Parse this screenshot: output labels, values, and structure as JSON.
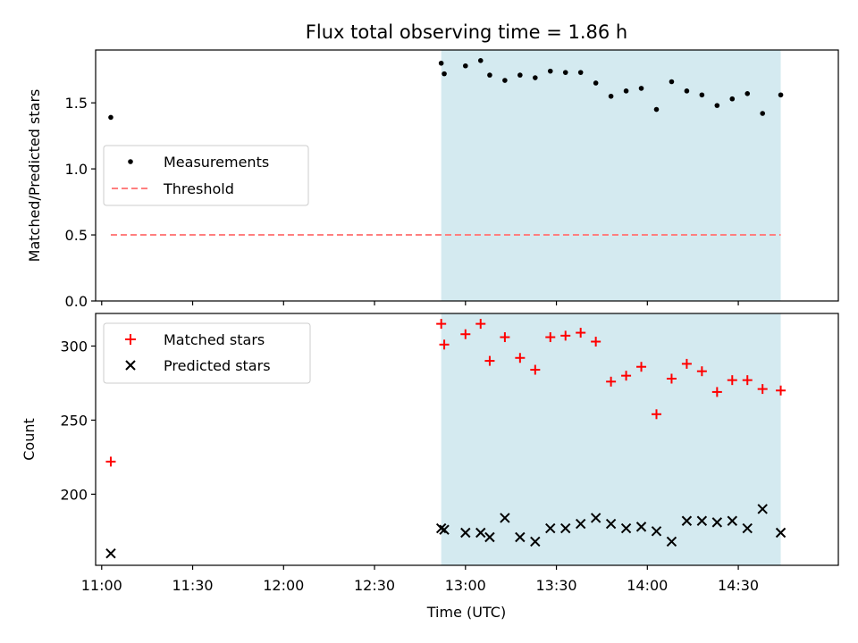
{
  "chart_data": [
    {
      "type": "scatter",
      "title": "Flux total observing time = 1.86 h",
      "ylabel": "Matched/Predicted stars",
      "xlabel": "",
      "xlim": [
        "10:58",
        "15:03"
      ],
      "ylim": [
        0,
        1.9
      ],
      "yticks": [
        "0.0",
        "0.5",
        "1.0",
        "1.5"
      ],
      "ytick_values": [
        0,
        0.5,
        1.0,
        1.5
      ],
      "legend_position": "center-left",
      "shaded_interval": {
        "start": "12:52",
        "end": "14:44",
        "color": "#add8e6"
      },
      "series": [
        {
          "name": "Measurements",
          "marker": "dot",
          "color": "#000000",
          "x": [
            "11:03",
            "12:52",
            "12:53",
            "13:00",
            "13:05",
            "13:08",
            "13:13",
            "13:18",
            "13:23",
            "13:28",
            "13:33",
            "13:38",
            "13:43",
            "13:48",
            "13:53",
            "13:58",
            "14:03",
            "14:08",
            "14:13",
            "14:18",
            "14:23",
            "14:28",
            "14:33",
            "14:38",
            "14:44"
          ],
          "y": [
            1.39,
            1.8,
            1.72,
            1.78,
            1.82,
            1.71,
            1.67,
            1.71,
            1.69,
            1.74,
            1.73,
            1.73,
            1.65,
            1.55,
            1.59,
            1.61,
            1.45,
            1.66,
            1.59,
            1.56,
            1.48,
            1.53,
            1.57,
            1.42,
            1.56
          ]
        },
        {
          "name": "Threshold",
          "marker": "dashed-line",
          "color": "#ff7f7f",
          "x": [
            "11:03",
            "14:44"
          ],
          "y": [
            0.5,
            0.5
          ]
        }
      ]
    },
    {
      "type": "scatter",
      "title": "",
      "ylabel": "Count",
      "xlabel": "Time (UTC)",
      "xlim": [
        "10:58",
        "15:03"
      ],
      "ylim": [
        152,
        322
      ],
      "yticks": [
        "200",
        "250",
        "300"
      ],
      "ytick_values": [
        200,
        250,
        300
      ],
      "xticks": [
        "11:00",
        "11:30",
        "12:00",
        "12:30",
        "13:00",
        "13:30",
        "14:00",
        "14:30"
      ],
      "legend_position": "upper-left",
      "shaded_interval": {
        "start": "12:52",
        "end": "14:44",
        "color": "#add8e6"
      },
      "series": [
        {
          "name": "Matched stars",
          "marker": "plus",
          "color": "#ff0000",
          "x": [
            "11:03",
            "12:52",
            "12:53",
            "13:00",
            "13:05",
            "13:08",
            "13:13",
            "13:18",
            "13:23",
            "13:28",
            "13:33",
            "13:38",
            "13:43",
            "13:48",
            "13:53",
            "13:58",
            "14:03",
            "14:08",
            "14:13",
            "14:18",
            "14:23",
            "14:28",
            "14:33",
            "14:38",
            "14:44"
          ],
          "y": [
            222,
            315,
            301,
            308,
            315,
            290,
            306,
            292,
            284,
            306,
            307,
            309,
            303,
            276,
            280,
            286,
            254,
            278,
            288,
            283,
            269,
            277,
            277,
            271,
            270
          ]
        },
        {
          "name": "Predicted stars",
          "marker": "x",
          "color": "#000000",
          "x": [
            "11:03",
            "12:52",
            "12:53",
            "13:00",
            "13:05",
            "13:08",
            "13:13",
            "13:18",
            "13:23",
            "13:28",
            "13:33",
            "13:38",
            "13:43",
            "13:48",
            "13:53",
            "13:58",
            "14:03",
            "14:08",
            "14:13",
            "14:18",
            "14:23",
            "14:28",
            "14:33",
            "14:38",
            "14:44"
          ],
          "y": [
            160,
            177,
            176,
            174,
            174,
            171,
            184,
            171,
            168,
            177,
            177,
            180,
            184,
            180,
            177,
            178,
            175,
            168,
            182,
            182,
            181,
            182,
            177,
            190,
            174
          ]
        }
      ]
    }
  ]
}
